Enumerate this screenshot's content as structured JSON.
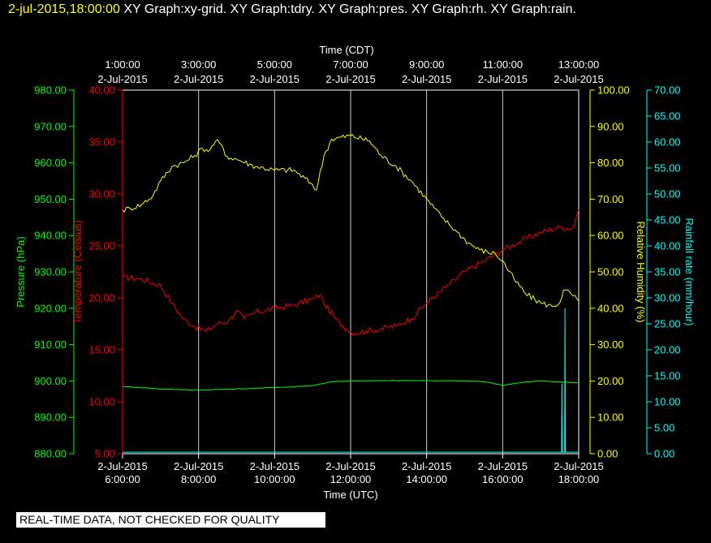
{
  "header": {
    "timestamp": "2-jul-2015,18:00:00",
    "graphs": "XY Graph:xy-grid.  XY Graph:tdry.  XY Graph:pres.  XY Graph:rh.  XY Graph:rain."
  },
  "banner": "REAL-TIME DATA, NOT CHECKED FOR QUALITY",
  "colors": {
    "background": "#000000",
    "grid": "#ffffff",
    "pressure": "#00ff00",
    "temperature": "#ff0000",
    "humidity": "#ffff00",
    "rain": "#00ffff"
  },
  "chart_data": {
    "type": "line",
    "x_axis_bottom": {
      "label": "Time (UTC)",
      "ticks": [
        {
          "date": "2-Jul-2015",
          "time": "6:00:00"
        },
        {
          "date": "2-Jul-2015",
          "time": "8:00:00"
        },
        {
          "date": "2-Jul-2015",
          "time": "10:00:00"
        },
        {
          "date": "2-Jul-2015",
          "time": "12:00:00"
        },
        {
          "date": "2-Jul-2015",
          "time": "14:00:00"
        },
        {
          "date": "2-Jul-2015",
          "time": "16:00:00"
        },
        {
          "date": "2-Jul-2015",
          "time": "18:00:00"
        }
      ]
    },
    "x_axis_top": {
      "label": "Time (CDT)",
      "ticks": [
        {
          "time": "1:00:00",
          "date": "2-Jul-2015"
        },
        {
          "time": "3:00:00",
          "date": "2-Jul-2015"
        },
        {
          "time": "5:00:00",
          "date": "2-Jul-2015"
        },
        {
          "time": "7:00:00",
          "date": "2-Jul-2015"
        },
        {
          "time": "9:00:00",
          "date": "2-Jul-2015"
        },
        {
          "time": "11:00:00",
          "date": "2-Jul-2015"
        },
        {
          "time": "13:00:00",
          "date": "2-Jul-2015"
        }
      ]
    },
    "x_range_utc_hours": [
      6,
      18
    ],
    "axes": {
      "pressure": {
        "label": "Pressure (hPa)",
        "min": 880,
        "max": 980,
        "ticks": [
          "880.00",
          "890.00",
          "900.00",
          "910.00",
          "920.00",
          "930.00",
          "940.00",
          "950.00",
          "960.00",
          "970.00",
          "980.00"
        ]
      },
      "temperature": {
        "label": "Temperature (Celsius)",
        "min": 5,
        "max": 40,
        "ticks": [
          "5.00",
          "10.00",
          "15.00",
          "20.00",
          "25.00",
          "30.00",
          "35.00",
          "40.00"
        ]
      },
      "humidity": {
        "label": "Relative Humidity (%)",
        "min": 0,
        "max": 100,
        "ticks": [
          "0.00",
          "10.00",
          "20.00",
          "30.00",
          "40.00",
          "50.00",
          "60.00",
          "70.00",
          "80.00",
          "90.00",
          "100.00"
        ]
      },
      "rain": {
        "label": "Rainfall rate (mm/hour)",
        "min": 0,
        "max": 70,
        "ticks": [
          "0.00",
          "5.00",
          "10.00",
          "15.00",
          "20.00",
          "25.00",
          "30.00",
          "35.00",
          "40.00",
          "45.00",
          "50.00",
          "55.00",
          "60.00",
          "65.00",
          "70.00"
        ]
      }
    },
    "grid": true,
    "series": [
      {
        "axis": "temperature",
        "points": [
          [
            6,
            22.0
          ],
          [
            6.5,
            21.8
          ],
          [
            7,
            21.2
          ],
          [
            7.3,
            19.5
          ],
          [
            7.6,
            18.0
          ],
          [
            7.9,
            17.2
          ],
          [
            8.2,
            16.8
          ],
          [
            8.5,
            17.5
          ],
          [
            8.8,
            17.8
          ],
          [
            9.0,
            18.8
          ],
          [
            9.2,
            18.0
          ],
          [
            9.5,
            18.6
          ],
          [
            10.0,
            19.0
          ],
          [
            10.5,
            19.3
          ],
          [
            11.0,
            19.9
          ],
          [
            11.2,
            20.3
          ],
          [
            11.3,
            19.5
          ],
          [
            11.6,
            18.0
          ],
          [
            11.9,
            17.0
          ],
          [
            12.1,
            16.6
          ],
          [
            12.4,
            16.8
          ],
          [
            12.8,
            17.0
          ],
          [
            13.2,
            17.3
          ],
          [
            13.6,
            18.0
          ],
          [
            14.0,
            19.5
          ],
          [
            14.5,
            21.0
          ],
          [
            15.0,
            22.5
          ],
          [
            15.5,
            23.5
          ],
          [
            16.0,
            24.6
          ],
          [
            16.5,
            25.5
          ],
          [
            17.0,
            26.3
          ],
          [
            17.5,
            26.8
          ],
          [
            17.85,
            26.7
          ],
          [
            17.9,
            27.0
          ],
          [
            17.95,
            28.0
          ],
          [
            18.0,
            28.5
          ]
        ]
      },
      {
        "axis": "humidity",
        "points": [
          [
            6,
            67.0
          ],
          [
            6.2,
            67.5
          ],
          [
            6.5,
            68.5
          ],
          [
            6.8,
            71.0
          ],
          [
            7.0,
            75.0
          ],
          [
            7.3,
            79.0
          ],
          [
            7.6,
            80.0
          ],
          [
            7.9,
            82.0
          ],
          [
            8.1,
            84.0
          ],
          [
            8.3,
            83.5
          ],
          [
            8.45,
            86.0
          ],
          [
            8.6,
            85.0
          ],
          [
            8.7,
            82.0
          ],
          [
            9.0,
            81.0
          ],
          [
            9.5,
            79.0
          ],
          [
            10.0,
            78.0
          ],
          [
            10.5,
            78.0
          ],
          [
            11.0,
            74.0
          ],
          [
            11.1,
            72.5
          ],
          [
            11.3,
            82.0
          ],
          [
            11.5,
            86.5
          ],
          [
            12.0,
            87.5
          ],
          [
            12.5,
            86.0
          ],
          [
            12.8,
            82.0
          ],
          [
            13.2,
            79.0
          ],
          [
            13.6,
            75.0
          ],
          [
            14.0,
            70.0
          ],
          [
            14.4,
            65.0
          ],
          [
            14.8,
            61.0
          ],
          [
            15.1,
            58.0
          ],
          [
            15.4,
            56.0
          ],
          [
            15.8,
            55.0
          ],
          [
            16.0,
            53.0
          ],
          [
            16.3,
            48.0
          ],
          [
            16.6,
            44.0
          ],
          [
            17.0,
            41.5
          ],
          [
            17.3,
            40.5
          ],
          [
            17.5,
            41.5
          ],
          [
            17.6,
            45.0
          ],
          [
            17.8,
            44.0
          ],
          [
            18.0,
            42.0
          ]
        ]
      },
      {
        "axis": "pressure",
        "points": [
          [
            6,
            898.5
          ],
          [
            7,
            897.8
          ],
          [
            8,
            897.5
          ],
          [
            9,
            897.8
          ],
          [
            10,
            898.2
          ],
          [
            11,
            898.7
          ],
          [
            11.5,
            899.8
          ],
          [
            12,
            900.0
          ],
          [
            13,
            900.1
          ],
          [
            14,
            900.1
          ],
          [
            15,
            900.0
          ],
          [
            15.5,
            899.8
          ],
          [
            16,
            898.8
          ],
          [
            16.5,
            899.6
          ],
          [
            17,
            900.0
          ],
          [
            18,
            899.5
          ]
        ]
      },
      {
        "axis": "rain",
        "points": [
          [
            6,
            0.3
          ],
          [
            17.55,
            0.3
          ],
          [
            17.56,
            13.5
          ],
          [
            17.57,
            0.3
          ],
          [
            17.63,
            0.3
          ],
          [
            17.64,
            28.0
          ],
          [
            17.65,
            0.3
          ],
          [
            18,
            0.3
          ]
        ]
      }
    ]
  }
}
